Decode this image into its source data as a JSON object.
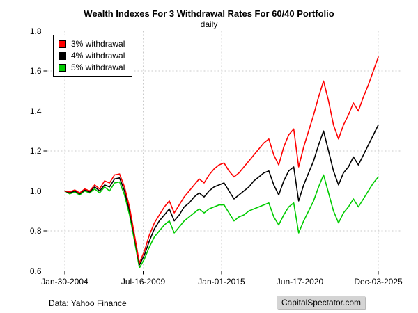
{
  "footer": {
    "left": "Data: Yahoo Finance",
    "right": "CapitalSpectator.com"
  },
  "chart_data": {
    "type": "line",
    "title": "Wealth Indexes For 3 Withdrawal Rates For 60/40 Portfolio",
    "subtitle": "daily",
    "x_tick_labels": [
      "Jan-30-2004",
      "Jul-16-2009",
      "Jan-01-2015",
      "Jun-17-2020",
      "Dec-03-2025"
    ],
    "y_ticks": [
      0.6,
      0.8,
      1.0,
      1.2,
      1.4,
      1.6,
      1.8
    ],
    "ylim": [
      0.6,
      1.8
    ],
    "grid": true,
    "legend_position": "top-left",
    "grid_color": "#c9c9c9",
    "series": [
      {
        "name": "3% withdrawal",
        "color": "#ff0000",
        "values": [
          1.0,
          0.995,
          1.005,
          0.99,
          1.01,
          1.0,
          1.03,
          1.01,
          1.05,
          1.04,
          1.08,
          1.085,
          1.02,
          0.92,
          0.78,
          0.64,
          0.7,
          0.78,
          0.84,
          0.88,
          0.92,
          0.95,
          0.89,
          0.93,
          0.97,
          1.0,
          1.03,
          1.06,
          1.04,
          1.08,
          1.11,
          1.13,
          1.14,
          1.1,
          1.07,
          1.09,
          1.12,
          1.15,
          1.18,
          1.21,
          1.24,
          1.26,
          1.18,
          1.13,
          1.22,
          1.28,
          1.31,
          1.12,
          1.22,
          1.3,
          1.38,
          1.47,
          1.55,
          1.45,
          1.33,
          1.26,
          1.33,
          1.38,
          1.44,
          1.4,
          1.47,
          1.53,
          1.6,
          1.67
        ]
      },
      {
        "name": "4% withdrawal",
        "color": "#000000",
        "values": [
          1.0,
          0.99,
          1.0,
          0.985,
          1.005,
          0.995,
          1.02,
          1.0,
          1.03,
          1.02,
          1.06,
          1.065,
          1.0,
          0.9,
          0.77,
          0.63,
          0.68,
          0.75,
          0.81,
          0.85,
          0.88,
          0.91,
          0.85,
          0.88,
          0.92,
          0.94,
          0.97,
          0.99,
          0.97,
          1.0,
          1.02,
          1.03,
          1.04,
          1.0,
          0.96,
          0.98,
          1.0,
          1.02,
          1.05,
          1.07,
          1.09,
          1.1,
          1.03,
          0.98,
          1.05,
          1.1,
          1.12,
          0.95,
          1.03,
          1.09,
          1.15,
          1.23,
          1.3,
          1.2,
          1.1,
          1.03,
          1.09,
          1.12,
          1.17,
          1.13,
          1.18,
          1.23,
          1.28,
          1.33
        ]
      },
      {
        "name": "5% withdrawal",
        "color": "#00cc00",
        "values": [
          1.0,
          0.985,
          0.995,
          0.98,
          1.0,
          0.99,
          1.01,
          0.99,
          1.02,
          1.0,
          1.04,
          1.045,
          0.98,
          0.88,
          0.75,
          0.615,
          0.66,
          0.72,
          0.77,
          0.8,
          0.83,
          0.85,
          0.79,
          0.82,
          0.85,
          0.87,
          0.89,
          0.91,
          0.89,
          0.91,
          0.92,
          0.93,
          0.93,
          0.89,
          0.85,
          0.87,
          0.88,
          0.9,
          0.91,
          0.92,
          0.93,
          0.94,
          0.87,
          0.83,
          0.88,
          0.92,
          0.94,
          0.79,
          0.85,
          0.9,
          0.95,
          1.02,
          1.08,
          0.99,
          0.9,
          0.84,
          0.89,
          0.92,
          0.96,
          0.92,
          0.96,
          1.0,
          1.04,
          1.07
        ]
      }
    ]
  }
}
